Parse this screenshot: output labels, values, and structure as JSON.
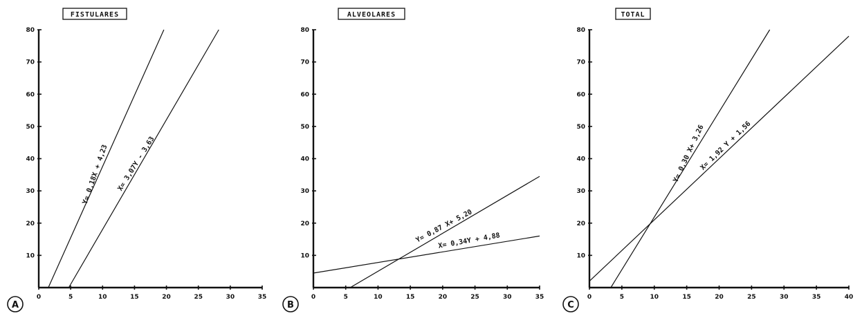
{
  "chart_data": [
    {
      "type": "line",
      "panel": "A",
      "title": "FISTULARES",
      "xlim": [
        0,
        35
      ],
      "ylim": [
        0,
        80
      ],
      "xticks": [
        0,
        5,
        10,
        15,
        20,
        25,
        30,
        35
      ],
      "yticks": [
        10,
        20,
        30,
        40,
        50,
        60,
        70,
        80
      ],
      "series": [
        {
          "label": "Y= 0,18X + 4,23",
          "x": [
            1.5,
            19.6
          ],
          "y": [
            0,
            80
          ]
        },
        {
          "label": "X= 3,07Y - 3,63",
          "x": [
            4.7,
            28.2
          ],
          "y": [
            0,
            80
          ]
        }
      ]
    },
    {
      "type": "line",
      "panel": "B",
      "title": "ALVEOLARES",
      "xlim": [
        0,
        35
      ],
      "ylim": [
        0,
        80
      ],
      "xticks": [
        0,
        5,
        10,
        15,
        20,
        25,
        30,
        35
      ],
      "yticks": [
        10,
        20,
        30,
        40,
        50,
        60,
        70,
        80
      ],
      "series": [
        {
          "label": "Y= 0,87 X+ 5,20",
          "x": [
            5.7,
            35
          ],
          "y": [
            0,
            34.5
          ]
        },
        {
          "label": "X= 0,34Y + 4,88",
          "x": [
            0,
            35
          ],
          "y": [
            4.5,
            16
          ]
        }
      ]
    },
    {
      "type": "line",
      "panel": "C",
      "title": "TOTAL",
      "xlim": [
        0,
        40
      ],
      "ylim": [
        0,
        80
      ],
      "xticks": [
        0,
        5,
        10,
        15,
        20,
        25,
        30,
        35,
        40
      ],
      "yticks": [
        10,
        20,
        30,
        40,
        50,
        60,
        70,
        80
      ],
      "series": [
        {
          "label": "Y= 0,30 X+ 3,26",
          "x": [
            3.3,
            27.8
          ],
          "y": [
            0,
            80
          ]
        },
        {
          "label": "X= 1,92 Y + 1,56",
          "x": [
            0,
            40
          ],
          "y": [
            2,
            78
          ]
        }
      ]
    }
  ]
}
